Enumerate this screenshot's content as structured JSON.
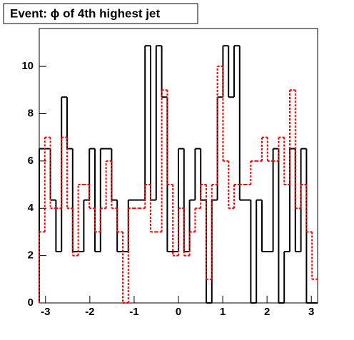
{
  "chart_data": {
    "type": "histogram",
    "title": "Event: ϕ of 4th highest jet",
    "bins": [
      -3.1416,
      -3.0159,
      -2.8903,
      -2.7646,
      -2.6389,
      -2.5133,
      -2.3876,
      -2.2619,
      -2.1363,
      -2.0106,
      -1.885,
      -1.7593,
      -1.6336,
      -1.508,
      -1.3823,
      -1.2566,
      -1.131,
      -1.0053,
      -0.8796,
      -0.754,
      -0.6283,
      -0.5027,
      -0.377,
      -0.2513,
      -0.1257,
      0,
      0.1257,
      0.2513,
      0.377,
      0.5027,
      0.6283,
      0.754,
      0.8796,
      1.0053,
      1.131,
      1.2566,
      1.3823,
      1.508,
      1.6336,
      1.7593,
      1.885,
      2.0106,
      2.1363,
      2.2619,
      2.3876,
      2.5133,
      2.6389,
      2.7646,
      2.8903,
      3.0159,
      3.1416
    ],
    "series": [
      {
        "color": "#000000",
        "dashed": false,
        "values": [
          6.52,
          6.52,
          4.35,
          2.17,
          8.7,
          6.52,
          2.17,
          2.17,
          4.35,
          6.52,
          2.17,
          6.52,
          6.52,
          4.35,
          2.17,
          2.17,
          4.35,
          4.35,
          4.35,
          10.87,
          4.35,
          10.87,
          8.7,
          2.17,
          2.17,
          6.52,
          2.17,
          4.35,
          6.52,
          4.35,
          0,
          4.35,
          8.7,
          10.87,
          8.7,
          10.87,
          4.35,
          4.35,
          0,
          4.35,
          2.17,
          2.17,
          6.52,
          0,
          2.17,
          6.52,
          2.17,
          6.52,
          0,
          0
        ]
      },
      {
        "color": "#ff0000",
        "dashed": true,
        "values": [
          3,
          7,
          4,
          4,
          7,
          4,
          2,
          5,
          5,
          4,
          3,
          4,
          6,
          4,
          3,
          0,
          4,
          4,
          4,
          5,
          3,
          3,
          9,
          5,
          2,
          4,
          2,
          3,
          4,
          5,
          1,
          5,
          10,
          6,
          4,
          5,
          5,
          5,
          6,
          6,
          7,
          6,
          6,
          7,
          5,
          9,
          4,
          5,
          3,
          1
        ]
      }
    ],
    "xlim": [
      -3.1416,
      3.1416
    ],
    "xticks": [
      -3,
      -2,
      -1,
      0,
      1,
      2,
      3
    ],
    "ylim": [
      0,
      11.6
    ],
    "yticks": [
      0,
      2,
      4,
      6,
      8,
      10
    ]
  }
}
